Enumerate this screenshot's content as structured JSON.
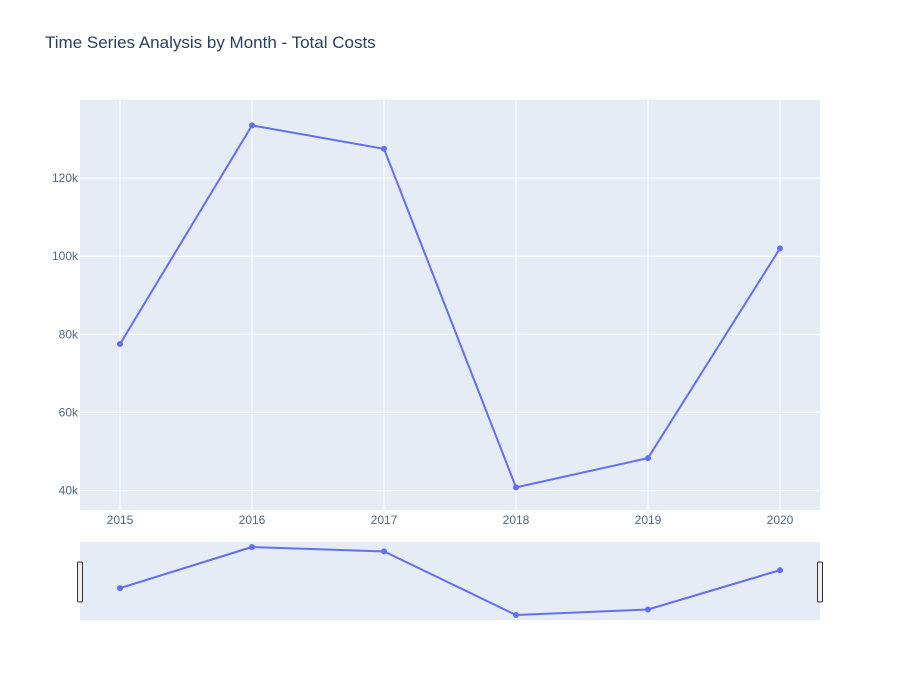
{
  "chart_data": {
    "type": "line",
    "title": "Time Series Analysis by Month - Total Costs",
    "xlabel": "",
    "ylabel": "",
    "x": [
      "2015",
      "2016",
      "2017",
      "2018",
      "2019",
      "2020"
    ],
    "series": [
      {
        "values": [
          77500,
          133500,
          127500,
          40800,
          48300,
          102000
        ]
      }
    ],
    "ylim": [
      35000,
      140000
    ],
    "yticks": [
      40000,
      60000,
      80000,
      100000,
      120000
    ],
    "ytick_labels": [
      "40k",
      "60k",
      "80k",
      "100k",
      "120k"
    ],
    "grid": true,
    "legend": "none",
    "range_slider": true,
    "colors": {
      "line": "#636efa",
      "plot_background": "#e5ecf6",
      "grid": "#ffffff",
      "text": "#2a3f5f",
      "tick_text": "#506784"
    }
  }
}
